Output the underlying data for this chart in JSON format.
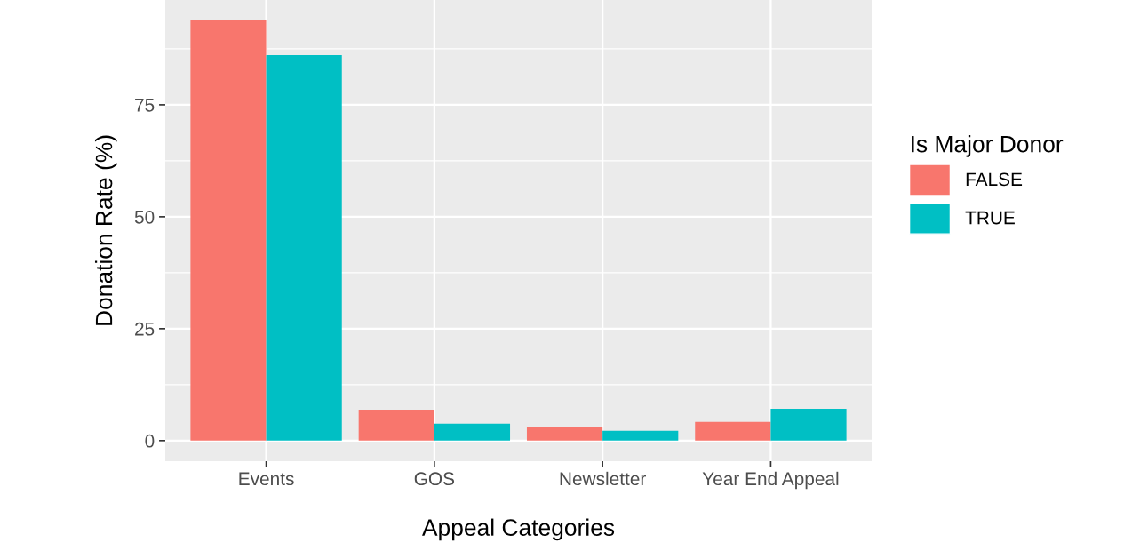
{
  "chart_data": {
    "type": "bar",
    "xlabel": "Appeal Categories",
    "ylabel": "Donation Rate (%)",
    "legend_title": "Is Major Donor",
    "categories": [
      "Events",
      "GOS",
      "Newsletter",
      "Year End Appeal"
    ],
    "series": [
      {
        "name": "FALSE",
        "color": "#f8766d",
        "values": [
          94.0,
          6.9,
          3.0,
          4.2
        ]
      },
      {
        "name": "TRUE",
        "color": "#00bfc4",
        "values": [
          86.1,
          3.8,
          2.2,
          7.1
        ]
      }
    ],
    "ylim": [
      -4.6,
      98.4
    ],
    "yticks": [
      0,
      25,
      50,
      75
    ],
    "grid": true,
    "legend": "right"
  }
}
